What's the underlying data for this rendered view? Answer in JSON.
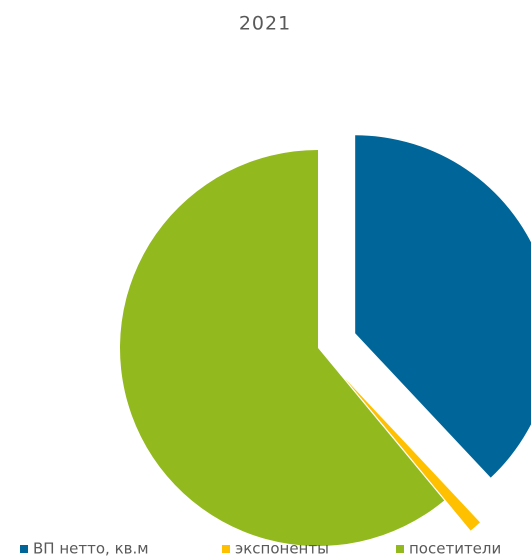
{
  "chart_data": {
    "type": "pie",
    "title": "2021",
    "categories": [
      "ВП нетто, кв.м",
      "экспоненты",
      "посетители"
    ],
    "values": [
      38,
      1,
      61
    ],
    "colors": [
      "#006699",
      "#ffc000",
      "#92b91e"
    ],
    "legend": "bottom"
  }
}
